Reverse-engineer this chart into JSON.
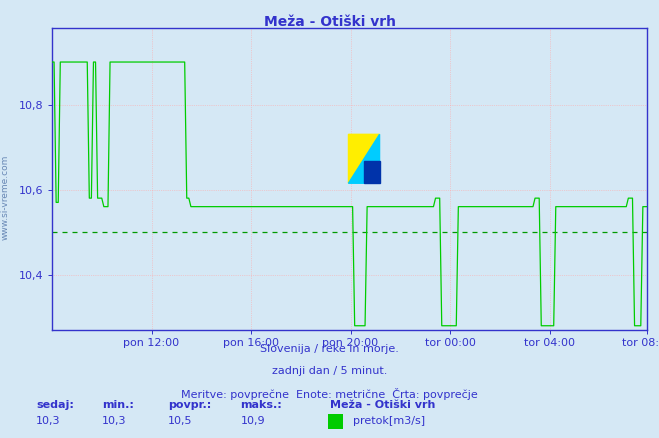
{
  "title": "Meža - Otiški vrh",
  "bg_color": "#d5e8f5",
  "line_color": "#00cc00",
  "avg_line_color": "#009900",
  "grid_color": "#ffaaaa",
  "axis_color": "#3333cc",
  "text_color": "#3333cc",
  "title_color": "#3333cc",
  "xlabel_texts": [
    "pon 12:00",
    "pon 16:00",
    "pon 20:00",
    "tor 00:00",
    "tor 04:00",
    "tor 08:00"
  ],
  "ylabel_ticks": [
    10.4,
    10.6,
    10.8
  ],
  "ylim": [
    10.27,
    10.98
  ],
  "xlim": [
    0,
    287
  ],
  "avg_value": 10.5,
  "footer_line1": "Slovenija / reke in morje.",
  "footer_line2": "zadnji dan / 5 minut.",
  "footer_line3": "Meritve: povprečne  Enote: metrične  Črta: povprečje",
  "stat_labels": [
    "sedaj:",
    "min.:",
    "povpr.:",
    "maks.:"
  ],
  "stat_values": [
    "10,3",
    "10,3",
    "10,5",
    "10,9"
  ],
  "legend_label": "Meža - Otiški vrh",
  "legend_unit": "pretok[m3/s]",
  "legend_color": "#00cc00",
  "n_points": 288,
  "tick_positions": [
    48,
    96,
    144,
    192,
    240,
    287
  ],
  "logo_yellow": "#ffee00",
  "logo_cyan": "#00ccff",
  "logo_blue": "#0033aa",
  "logo_line_color": "#888888"
}
